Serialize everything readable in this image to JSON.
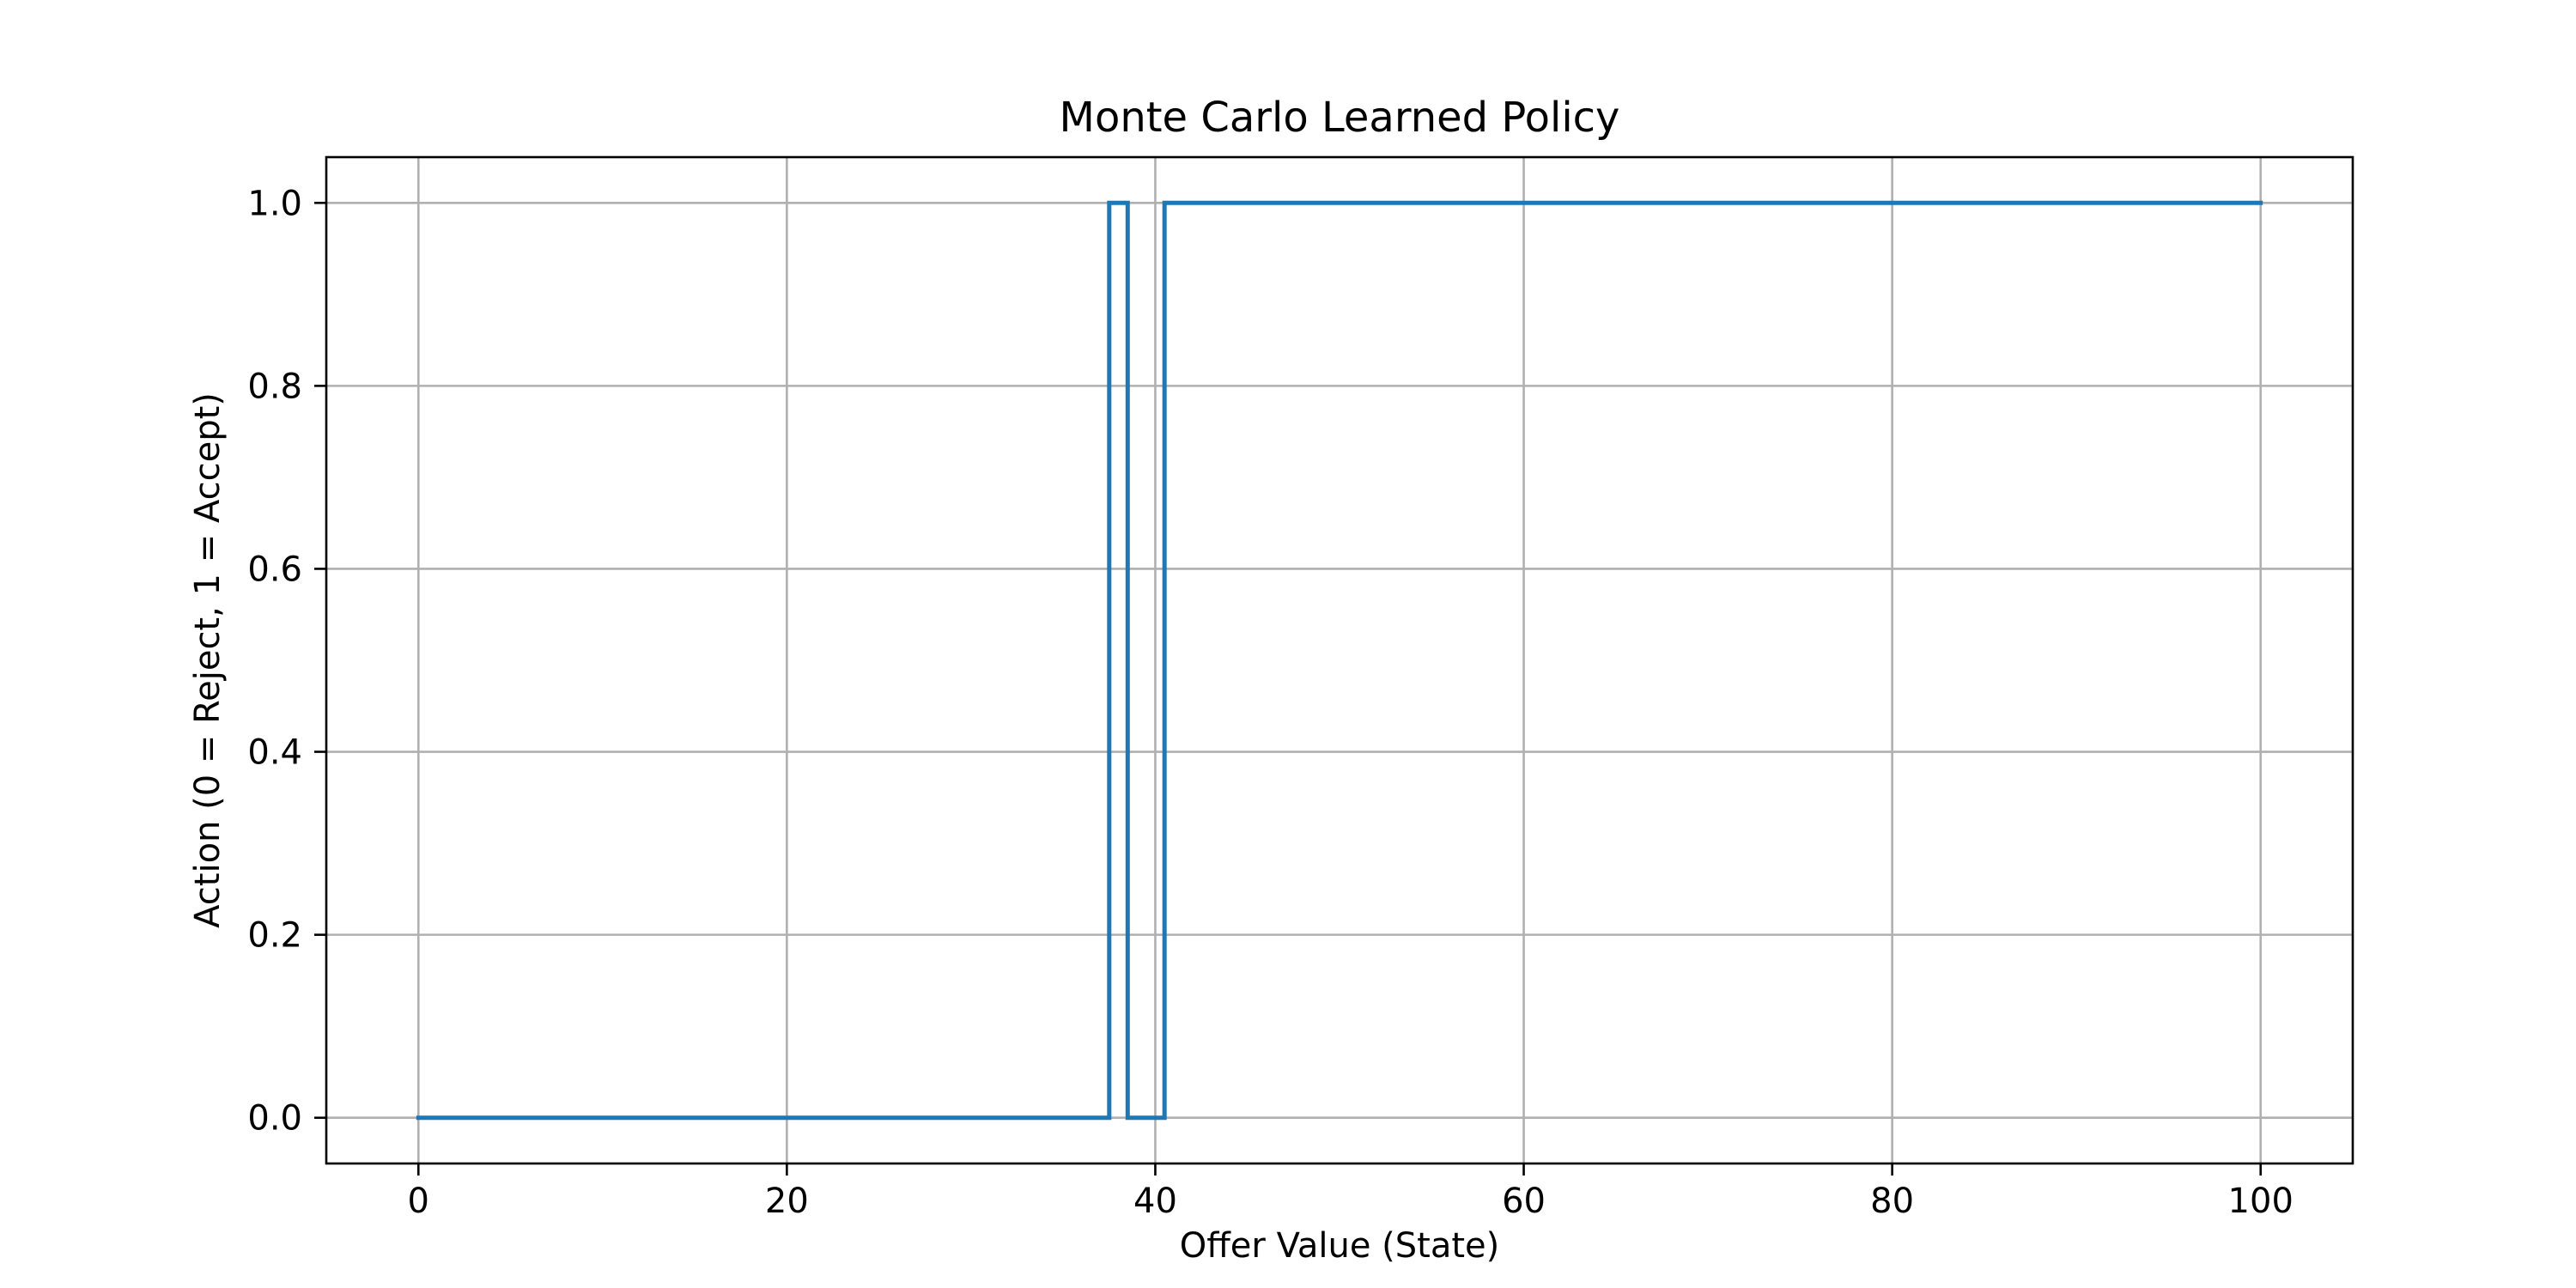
{
  "chart_data": {
    "type": "line",
    "drawstyle": "steps-mid",
    "title": "Monte Carlo Learned Policy",
    "xlabel": "Offer Value (State)",
    "ylabel": "Action (0 = Reject, 1 = Accept)",
    "xlim": [
      -5,
      105
    ],
    "ylim": [
      -0.05,
      1.05
    ],
    "xticks": [
      0,
      20,
      40,
      60,
      80,
      100
    ],
    "xtick_labels": [
      "0",
      "20",
      "40",
      "60",
      "80",
      "100"
    ],
    "yticks": [
      0.0,
      0.2,
      0.4,
      0.6,
      0.8,
      1.0
    ],
    "ytick_labels": [
      "0.0",
      "0.2",
      "0.4",
      "0.6",
      "0.8",
      "1.0"
    ],
    "grid": true,
    "series": [
      {
        "color": "#1f77b4",
        "points": [
          [
            0,
            0
          ],
          [
            37,
            0
          ],
          [
            38,
            1
          ],
          [
            39,
            0
          ],
          [
            40,
            0
          ],
          [
            41,
            1
          ],
          [
            100,
            1
          ]
        ]
      }
    ]
  }
}
